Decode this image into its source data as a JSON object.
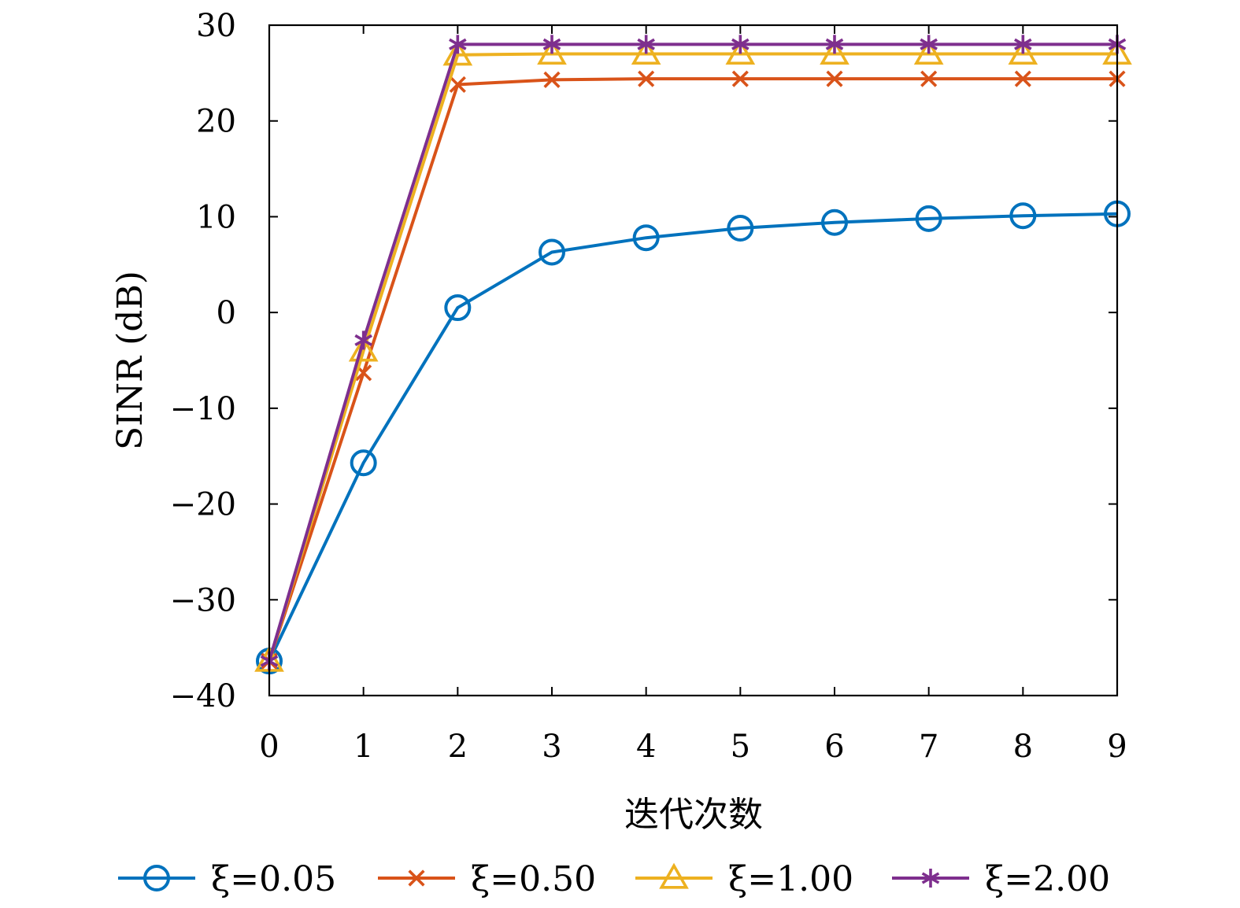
{
  "chart_data": {
    "type": "line",
    "xlabel": "迭代次数",
    "ylabel": "SINR (dB)",
    "xlim": [
      0,
      9
    ],
    "ylim": [
      -40,
      30
    ],
    "x": [
      0,
      1,
      2,
      3,
      4,
      5,
      6,
      7,
      8,
      9
    ],
    "xticks": [
      0,
      1,
      2,
      3,
      4,
      5,
      6,
      7,
      8,
      9
    ],
    "yticks": [
      -40,
      -30,
      -20,
      -10,
      0,
      10,
      20,
      30
    ],
    "ytick_labels": [
      "−40",
      "−30",
      "−20",
      "−10",
      "0",
      "10",
      "20",
      "30"
    ],
    "grid": false,
    "legend_position": "bottom",
    "series": [
      {
        "name": "ξ=0.05",
        "color": "#0072BD",
        "marker": "circle",
        "values": [
          -36.4,
          -15.7,
          0.5,
          6.3,
          7.8,
          8.8,
          9.4,
          9.8,
          10.1,
          10.3
        ]
      },
      {
        "name": "ξ=0.50",
        "color": "#D95319",
        "marker": "x",
        "values": [
          -36.4,
          -6.3,
          23.8,
          24.3,
          24.4,
          24.4,
          24.4,
          24.4,
          24.4,
          24.4
        ]
      },
      {
        "name": "ξ=1.00",
        "color": "#EDB120",
        "marker": "triangle",
        "values": [
          -36.4,
          -4.0,
          26.9,
          27.0,
          27.0,
          27.0,
          27.0,
          27.0,
          27.0,
          27.0
        ]
      },
      {
        "name": "ξ=2.00",
        "color": "#7E2F8E",
        "marker": "asterisk",
        "values": [
          -36.4,
          -2.9,
          28.0,
          28.0,
          28.0,
          28.0,
          28.0,
          28.0,
          28.0,
          28.0
        ]
      }
    ]
  }
}
